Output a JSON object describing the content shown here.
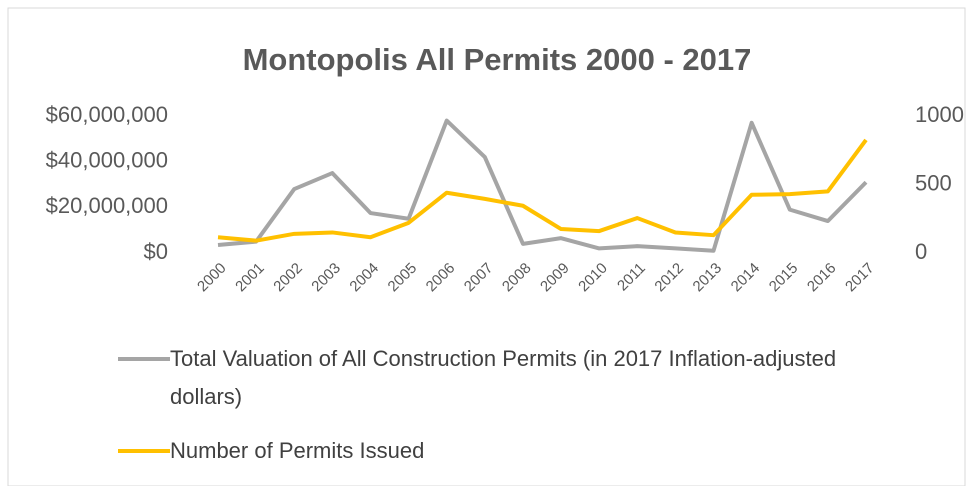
{
  "chart_data": {
    "type": "line",
    "title": "Montopolis All Permits 2000 - 2017",
    "categories": [
      "2000",
      "2001",
      "2002",
      "2003",
      "2004",
      "2005",
      "2006",
      "2007",
      "2008",
      "2009",
      "2010",
      "2011",
      "2012",
      "2013",
      "2014",
      "2015",
      "2016",
      "2017"
    ],
    "series": [
      {
        "name": "Total Valuation of All Construction Permits (in 2017 Inflation-adjusted dollars)",
        "color": "#a5a5a5",
        "values": [
          3500000,
          5000000,
          28000000,
          35000000,
          17500000,
          15000000,
          58000000,
          42000000,
          4000000,
          6500000,
          2000000,
          3000000,
          2000000,
          1000000,
          57000000,
          19000000,
          14000000,
          31000000
        ]
      },
      {
        "name": "Number of Permits Issued",
        "color": "#ffc000",
        "axis": "y2",
        "values": [
          115,
          90,
          140,
          150,
          115,
          220,
          440,
          395,
          345,
          175,
          160,
          255,
          150,
          130,
          425,
          430,
          450,
          825
        ]
      }
    ],
    "ylim": [
      0,
      60000000
    ],
    "yticks": [
      {
        "value": 0,
        "label": "$0"
      },
      {
        "value": 20000000,
        "label": "$20,000,000"
      },
      {
        "value": 40000000,
        "label": "$40,000,000"
      },
      {
        "value": 60000000,
        "label": "$60,000,000"
      }
    ],
    "y2lim": [
      0,
      1000
    ],
    "y2ticks": [
      0,
      500,
      1000
    ],
    "grid": false
  }
}
